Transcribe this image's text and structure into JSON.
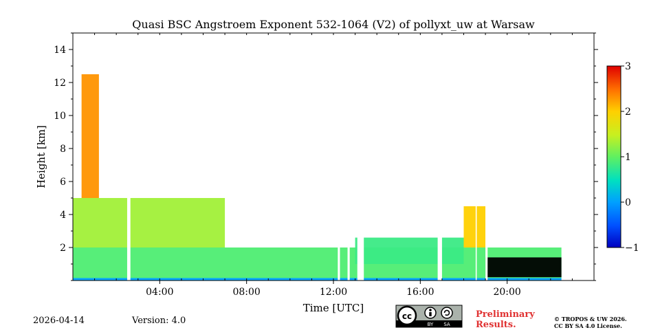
{
  "chart_data": {
    "type": "heatmap",
    "title": "Quasi BSC Angstroem Exponent 532-1064 (V2) of pollyxt_uw at Warsaw",
    "xlabel": "Time [UTC]",
    "ylabel": "Height [km]",
    "xlim_hours": [
      0,
      24
    ],
    "ylim_km": [
      0,
      15
    ],
    "x_ticks": [
      {
        "value": 4,
        "label": "04:00"
      },
      {
        "value": 8,
        "label": "08:00"
      },
      {
        "value": 12,
        "label": "12:00"
      },
      {
        "value": 16,
        "label": "16:00"
      },
      {
        "value": 20,
        "label": "20:00"
      }
    ],
    "y_ticks": [
      {
        "value": 2,
        "label": "2"
      },
      {
        "value": 4,
        "label": "4"
      },
      {
        "value": 6,
        "label": "6"
      },
      {
        "value": 8,
        "label": "8"
      },
      {
        "value": 10,
        "label": "10"
      },
      {
        "value": 12,
        "label": "12"
      },
      {
        "value": 14,
        "label": "14"
      }
    ],
    "colorbar": {
      "colormap": "jet",
      "range": [
        -1,
        3
      ],
      "ticks": [
        {
          "value": -1,
          "label": "−1"
        },
        {
          "value": 0,
          "label": "0"
        },
        {
          "value": 1,
          "label": "1"
        },
        {
          "value": 2,
          "label": "2"
        },
        {
          "value": 3,
          "label": "3"
        }
      ]
    },
    "layers": [
      {
        "name": "boundary layer",
        "t0": 0,
        "t1": 22.5,
        "h0": 0.1,
        "h1": 2.0,
        "value": 0.9
      },
      {
        "name": "near-surface blue line",
        "t0": 0,
        "t1": 22.5,
        "h0": 0.0,
        "h1": 0.15,
        "value": 0.0
      },
      {
        "name": "lofted aerosol layer",
        "t0": 0,
        "t1": 7.0,
        "h0": 2.0,
        "h1": 5.0,
        "value": 1.3
      },
      {
        "name": "high cloud plume",
        "t0": 0.4,
        "t1": 1.2,
        "h0": 5.0,
        "h1": 12.5,
        "value": 2.3
      },
      {
        "name": "afternoon layer",
        "t0": 13,
        "t1": 18,
        "h0": 1.0,
        "h1": 2.6,
        "value": 0.8
      },
      {
        "name": "evening residual layer",
        "t0": 19,
        "t1": 22.5,
        "h0": 0.2,
        "h1": 1.4,
        "value": -1.5
      },
      {
        "name": "evening plume",
        "t0": 18,
        "t1": 19,
        "h0": 2.0,
        "h1": 4.5,
        "value": 2.0
      }
    ],
    "gaps_hours": [
      [
        2.5,
        2.65
      ],
      [
        12.2,
        12.3
      ],
      [
        12.65,
        12.75
      ],
      [
        13.1,
        13.4
      ],
      [
        16.8,
        17.0
      ],
      [
        18.55,
        18.6
      ],
      [
        19.0,
        19.1
      ]
    ]
  },
  "footer": {
    "date": "2026-04-14",
    "version": "Version: 4.0",
    "license_badge": {
      "cc": "cc",
      "by": "BY",
      "sa": "SA"
    },
    "preliminary_line1": "Preliminary",
    "preliminary_line2": "Results.",
    "copyright_line1": "© TROPOS & UW 2026.",
    "copyright_line2": "CC BY SA 4.0 License."
  },
  "colors": {
    "preliminary": "#e03131"
  }
}
